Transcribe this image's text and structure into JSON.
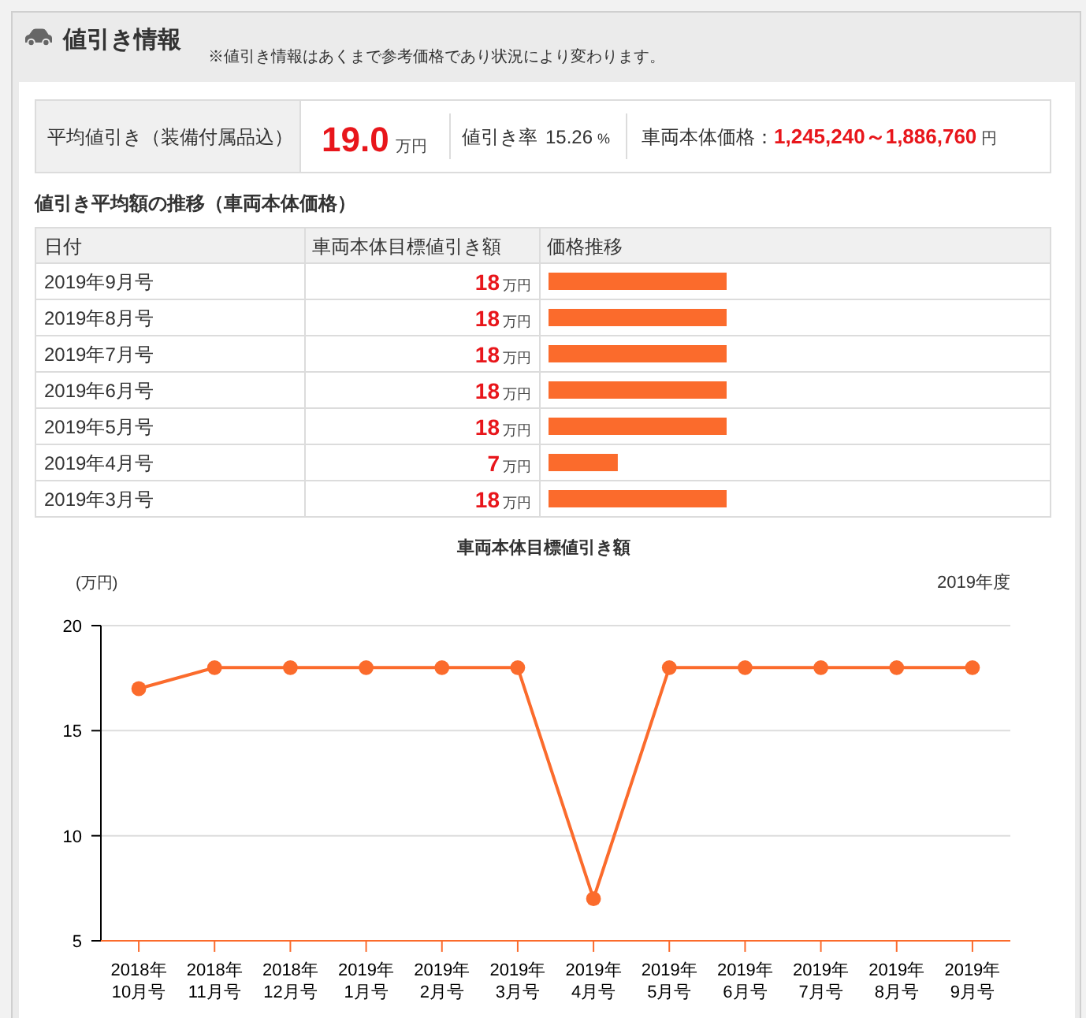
{
  "chart_data": [
    {
      "type": "other",
      "title": "値引き情報",
      "annotations": [
        "※値引き情報はあくまで参考価格であり状況により変わります。",
        "平均値引き（装備付属品込）",
        "19.0",
        "万円",
        "値引き率",
        "15.26",
        "%",
        "車両本体価格：",
        "1,245,240～1,886,760",
        "円"
      ]
    },
    {
      "type": "bar",
      "orientation": "horizontal",
      "title": "値引き平均額の推移（車両本体価格）",
      "ylabel": "日付",
      "xlabel": "価格推移",
      "annotations": [
        "車両本体目標値引き額"
      ],
      "categories": [
        "2019年9月号",
        "2019年8月号",
        "2019年7月号",
        "2019年6月号",
        "2019年5月号",
        "2019年4月号",
        "2019年3月号"
      ],
      "values": [
        18,
        18,
        18,
        18,
        18,
        7,
        18
      ],
      "value_labels": [
        "18万円",
        "18万円",
        "18万円",
        "18万円",
        "18万円",
        "7万円",
        "18万円"
      ],
      "color": "#fb6b2c"
    },
    {
      "type": "line",
      "title": "車両本体目標値引き額",
      "ylabel": "(万円)",
      "annotations": [
        "2019年度"
      ],
      "categories": [
        "2018年10月号",
        "2018年11月号",
        "2018年12月号",
        "2019年1月号",
        "2019年2月号",
        "2019年3月号",
        "2019年4月号",
        "2019年5月号",
        "2019年6月号",
        "2019年7月号",
        "2019年8月号",
        "2019年9月号"
      ],
      "values": [
        17,
        18,
        18,
        18,
        18,
        18,
        7,
        18,
        18,
        18,
        18,
        18
      ],
      "color": "#fb6b2c",
      "ylim": [
        5,
        20
      ],
      "yticks": [
        5,
        10,
        15,
        20
      ],
      "grid": "y",
      "marker": "circle",
      "line_style": "solid"
    }
  ]
}
